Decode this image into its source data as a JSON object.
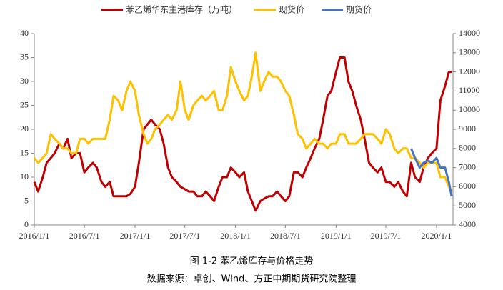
{
  "chart_data": {
    "type": "line",
    "x": [
      "2016/1/1",
      "2016/1/15",
      "2016/2/1",
      "2016/2/15",
      "2016/3/1",
      "2016/3/15",
      "2016/4/1",
      "2016/4/15",
      "2016/5/1",
      "2016/5/15",
      "2016/6/1",
      "2016/6/15",
      "2016/7/1",
      "2016/7/15",
      "2016/8/1",
      "2016/8/15",
      "2016/9/1",
      "2016/9/15",
      "2016/10/1",
      "2016/10/15",
      "2016/11/1",
      "2016/11/15",
      "2016/12/1",
      "2016/12/15",
      "2017/1/1",
      "2017/1/15",
      "2017/2/1",
      "2017/2/15",
      "2017/3/1",
      "2017/3/15",
      "2017/4/1",
      "2017/4/15",
      "2017/5/1",
      "2017/5/15",
      "2017/6/1",
      "2017/6/15",
      "2017/7/1",
      "2017/7/15",
      "2017/8/1",
      "2017/8/15",
      "2017/9/1",
      "2017/9/15",
      "2017/10/1",
      "2017/10/15",
      "2017/11/1",
      "2017/11/15",
      "2017/12/1",
      "2017/12/15",
      "2018/1/1",
      "2018/1/15",
      "2018/2/1",
      "2018/2/15",
      "2018/3/1",
      "2018/3/15",
      "2018/4/1",
      "2018/4/15",
      "2018/5/1",
      "2018/5/15",
      "2018/6/1",
      "2018/6/15",
      "2018/7/1",
      "2018/7/15",
      "2018/8/1",
      "2018/8/15",
      "2018/9/1",
      "2018/9/15",
      "2018/10/1",
      "2018/10/15",
      "2018/11/1",
      "2018/11/15",
      "2018/12/1",
      "2018/12/15",
      "2019/1/1",
      "2019/1/15",
      "2019/2/1",
      "2019/2/15",
      "2019/3/1",
      "2019/3/15",
      "2019/4/1",
      "2019/4/15",
      "2019/5/1",
      "2019/5/15",
      "2019/6/1",
      "2019/6/15",
      "2019/7/1",
      "2019/7/15",
      "2019/8/1",
      "2019/8/15",
      "2019/9/1",
      "2019/9/15",
      "2019/10/1",
      "2019/10/15",
      "2019/11/1",
      "2019/11/15",
      "2019/12/1",
      "2019/12/15",
      "2020/1/1",
      "2020/1/15",
      "2020/2/1",
      "2020/2/15",
      "2020/2/25"
    ],
    "xlim": [
      "2016/1/1",
      "2020/3/1"
    ],
    "xticks": [
      "2016/1/1",
      "2016/7/1",
      "2017/1/1",
      "2017/7/1",
      "2018/1/1",
      "2018/7/1",
      "2019/1/1",
      "2019/7/1",
      "2020/1/1"
    ],
    "ylim": [
      0,
      40
    ],
    "yticks": [
      0,
      5,
      10,
      15,
      20,
      25,
      30,
      35,
      40
    ],
    "y2lim": [
      4000,
      14000
    ],
    "y2ticks": [
      4000,
      5000,
      6000,
      7000,
      8000,
      9000,
      10000,
      11000,
      12000,
      13000,
      14000
    ],
    "grid": false,
    "legend": "top",
    "series": [
      {
        "name": "苯乙烯华东主港库存（万吨）",
        "color": "#c00000",
        "values": [
          9,
          7,
          10,
          13,
          14,
          15,
          17,
          16,
          18,
          14,
          15,
          15,
          11,
          12,
          13,
          12,
          9,
          8,
          9,
          6,
          6,
          6,
          6,
          6.5,
          8,
          13,
          20,
          21,
          22,
          21,
          20,
          17,
          12,
          10,
          9,
          8,
          7.5,
          7,
          7,
          6,
          6,
          7,
          6,
          5,
          8,
          10,
          10,
          12,
          11,
          10,
          11,
          7,
          5,
          3,
          5,
          5.5,
          6,
          6,
          7,
          6,
          5,
          6,
          11,
          11,
          10,
          12,
          14,
          16,
          18,
          22,
          27,
          28,
          32,
          35,
          35,
          30,
          28,
          25,
          22,
          18,
          13,
          12,
          11,
          12,
          9,
          9,
          8,
          9,
          7,
          6,
          13,
          10,
          9,
          12,
          14,
          15,
          16,
          26,
          29,
          32,
          32
        ]
      },
      {
        "name": "现货价",
        "color": "#ffc000",
        "axis": "y2",
        "values": [
          7500,
          7250,
          7500,
          7750,
          8750,
          8500,
          8250,
          8000,
          8000,
          7750,
          7750,
          8500,
          8500,
          8250,
          8500,
          8500,
          8500,
          8500,
          9500,
          10750,
          10500,
          10000,
          11000,
          11500,
          11000,
          9750,
          8750,
          8250,
          8500,
          9000,
          9250,
          9500,
          9750,
          9500,
          10000,
          11500,
          10000,
          9500,
          10250,
          10500,
          10750,
          10500,
          10750,
          11000,
          10000,
          10000,
          10750,
          12250,
          11500,
          11000,
          10500,
          10750,
          11750,
          13000,
          11000,
          11500,
          12000,
          11750,
          11750,
          11500,
          11000,
          10750,
          9750,
          8750,
          8500,
          8000,
          8250,
          8500,
          8250,
          8250,
          8000,
          8250,
          8250,
          8750,
          8750,
          8250,
          8250,
          8250,
          8500,
          8750,
          8750,
          8750,
          8500,
          8250,
          9000,
          8750,
          8000,
          7750,
          8000,
          8000,
          7500,
          7500,
          7250,
          7000,
          7250,
          7250,
          7250,
          6500,
          6500,
          6000,
          5750
        ]
      },
      {
        "name": "期货价",
        "color": "#4472c4",
        "axis": "y2",
        "values": [
          null,
          null,
          null,
          null,
          null,
          null,
          null,
          null,
          null,
          null,
          null,
          null,
          null,
          null,
          null,
          null,
          null,
          null,
          null,
          null,
          null,
          null,
          null,
          null,
          null,
          null,
          null,
          null,
          null,
          null,
          null,
          null,
          null,
          null,
          null,
          null,
          null,
          null,
          null,
          null,
          null,
          null,
          null,
          null,
          null,
          null,
          null,
          null,
          null,
          null,
          null,
          null,
          null,
          null,
          null,
          null,
          null,
          null,
          null,
          null,
          null,
          null,
          null,
          null,
          null,
          null,
          null,
          null,
          null,
          null,
          null,
          null,
          null,
          null,
          null,
          null,
          null,
          null,
          null,
          null,
          null,
          null,
          null,
          null,
          null,
          null,
          null,
          null,
          null,
          null,
          8000,
          7500,
          7000,
          7250,
          7375,
          7250,
          7500,
          7000,
          7000,
          6250,
          5500
        ]
      }
    ]
  },
  "caption": "图 1-2  苯乙烯库存与价格走势",
  "source": "数据来源：卓创、Wind、方正中期期货研究院整理"
}
